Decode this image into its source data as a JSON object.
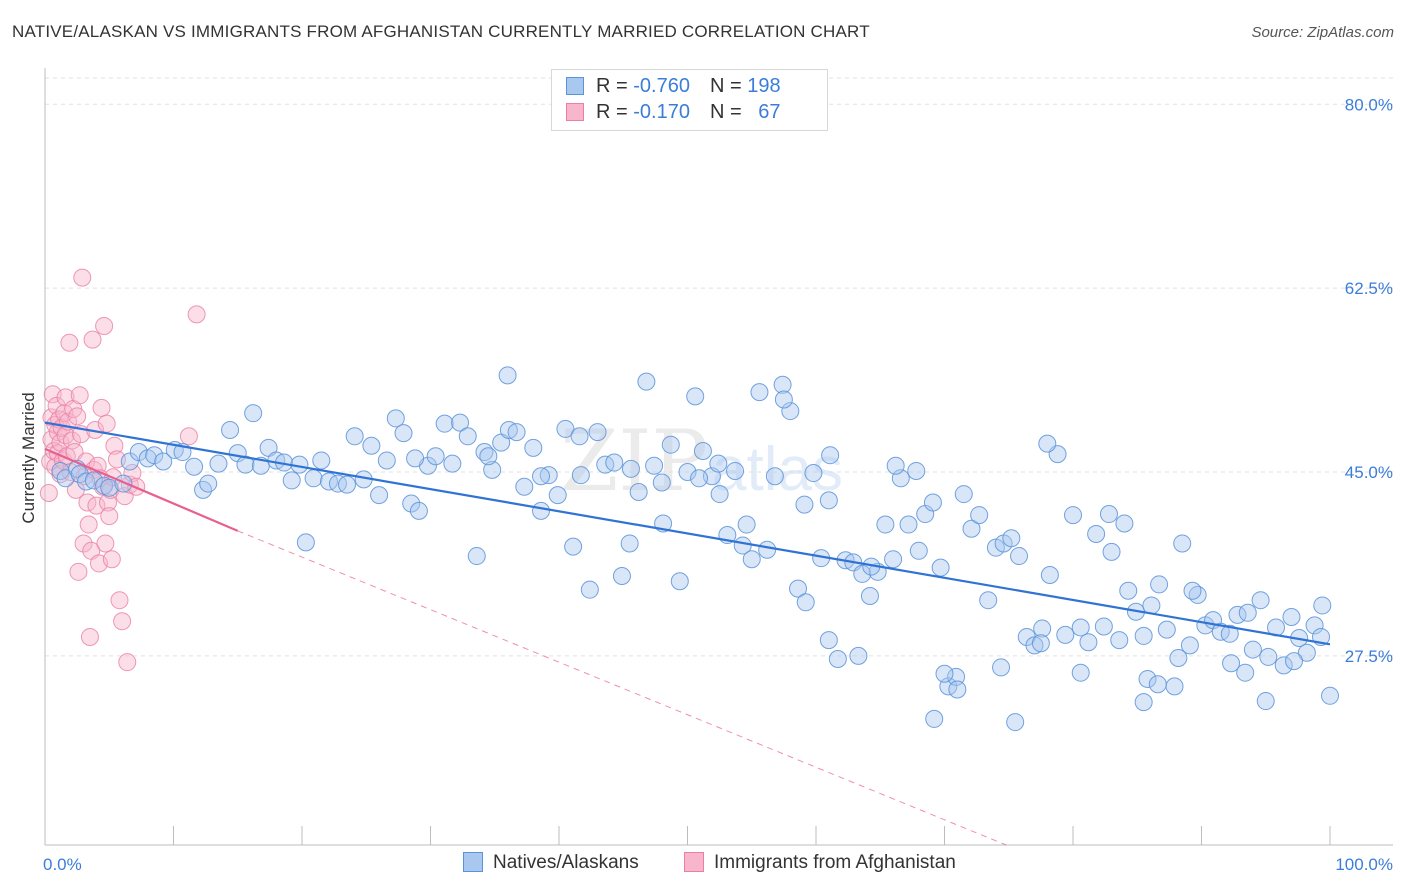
{
  "title": "NATIVE/ALASKAN VS IMMIGRANTS FROM AFGHANISTAN CURRENTLY MARRIED CORRELATION CHART",
  "source": "Source: ZipAtlas.com",
  "watermark": "ZIPatlas",
  "legend": {
    "rows": [
      {
        "r_label": "R = ",
        "r_value": "-0.760",
        "n_label": "N = ",
        "n_value": "198"
      },
      {
        "r_label": "R = ",
        "r_value": "-0.170",
        "n_label": "N = ",
        "n_value": "67"
      }
    ]
  },
  "bottom_legend": [
    "Natives/Alaskans",
    "Immigrants from Afghanistan"
  ],
  "colors": {
    "blue_fill": "#a8c8f0",
    "blue_stroke": "#5b93d9",
    "blue_line": "#2f73d4",
    "pink_fill": "#f7b6cb",
    "pink_stroke": "#ea7fa3",
    "pink_line": "#e8608f",
    "tick_text": "#3b7dd8",
    "grid": "#e2e2e2"
  },
  "chart_data": {
    "type": "scatter",
    "title": "NATIVE/ALASKAN VS IMMIGRANTS FROM AFGHANISTAN CURRENTLY MARRIED CORRELATION CHART",
    "xlabel": "",
    "ylabel": "Currently Married",
    "xlim": [
      0,
      100
    ],
    "ylim": [
      9.5,
      82.5
    ],
    "x_tick_labels": [
      "0.0%",
      "100.0%"
    ],
    "y_ticks": [
      27.5,
      45.0,
      62.5,
      80.0
    ],
    "y_tick_labels": [
      "27.5%",
      "45.0%",
      "62.5%",
      "80.0%"
    ],
    "grid": true,
    "legend_position": "top-center",
    "series": [
      {
        "name": "Natives/Alaskans",
        "r": -0.76,
        "n": 198,
        "trend": {
          "x0": 0,
          "y0": 49.7,
          "x1": 100,
          "y1": 28.6
        },
        "points": [
          [
            1.2,
            45.1
          ],
          [
            1.6,
            44.4
          ],
          [
            2.5,
            45.3
          ],
          [
            2.7,
            44.8
          ],
          [
            3.2,
            44.1
          ],
          [
            3.8,
            44.2
          ],
          [
            4.6,
            43.7
          ],
          [
            5.0,
            43.5
          ],
          [
            6.1,
            43.9
          ],
          [
            6.6,
            46.0
          ],
          [
            7.3,
            46.9
          ],
          [
            8.0,
            46.3
          ],
          [
            8.5,
            46.6
          ],
          [
            9.2,
            46.0
          ],
          [
            10.1,
            47.1
          ],
          [
            10.7,
            46.9
          ],
          [
            11.6,
            45.5
          ],
          [
            12.3,
            43.3
          ],
          [
            12.7,
            43.9
          ],
          [
            13.5,
            45.8
          ],
          [
            14.4,
            49.0
          ],
          [
            15.0,
            46.8
          ],
          [
            15.6,
            45.7
          ],
          [
            16.2,
            50.6
          ],
          [
            16.8,
            45.6
          ],
          [
            17.4,
            47.3
          ],
          [
            18.0,
            46.1
          ],
          [
            18.6,
            45.9
          ],
          [
            19.2,
            44.2
          ],
          [
            19.8,
            45.7
          ],
          [
            20.3,
            38.3
          ],
          [
            20.9,
            44.4
          ],
          [
            21.5,
            46.1
          ],
          [
            22.1,
            44.1
          ],
          [
            22.8,
            43.9
          ],
          [
            23.5,
            43.8
          ],
          [
            24.1,
            48.4
          ],
          [
            24.8,
            44.3
          ],
          [
            25.4,
            47.5
          ],
          [
            26.0,
            42.8
          ],
          [
            26.6,
            46.1
          ],
          [
            27.3,
            50.1
          ],
          [
            27.9,
            48.7
          ],
          [
            28.5,
            42.0
          ],
          [
            29.1,
            41.3
          ],
          [
            29.8,
            45.6
          ],
          [
            30.4,
            46.5
          ],
          [
            31.1,
            49.6
          ],
          [
            31.7,
            45.8
          ],
          [
            32.3,
            49.7
          ],
          [
            32.9,
            48.4
          ],
          [
            33.6,
            37.0
          ],
          [
            34.2,
            46.9
          ],
          [
            34.8,
            45.2
          ],
          [
            35.5,
            47.8
          ],
          [
            36.1,
            49.0
          ],
          [
            36.7,
            48.8
          ],
          [
            37.3,
            43.6
          ],
          [
            38.0,
            47.3
          ],
          [
            38.6,
            41.3
          ],
          [
            39.2,
            44.7
          ],
          [
            39.9,
            42.8
          ],
          [
            40.5,
            49.1
          ],
          [
            41.1,
            37.9
          ],
          [
            41.7,
            44.7
          ],
          [
            42.4,
            33.8
          ],
          [
            43.0,
            48.8
          ],
          [
            43.6,
            45.7
          ],
          [
            44.3,
            45.9
          ],
          [
            44.9,
            35.1
          ],
          [
            45.6,
            45.3
          ],
          [
            46.2,
            43.1
          ],
          [
            46.8,
            53.6
          ],
          [
            47.4,
            45.6
          ],
          [
            48.1,
            40.1
          ],
          [
            48.7,
            47.6
          ],
          [
            49.4,
            34.6
          ],
          [
            50.0,
            45.0
          ],
          [
            50.6,
            52.2
          ],
          [
            51.2,
            47.0
          ],
          [
            51.9,
            44.6
          ],
          [
            52.5,
            42.9
          ],
          [
            53.1,
            39.0
          ],
          [
            53.7,
            45.1
          ],
          [
            54.3,
            38.0
          ],
          [
            55.0,
            36.7
          ],
          [
            55.6,
            52.6
          ],
          [
            56.2,
            37.6
          ],
          [
            56.8,
            44.6
          ],
          [
            57.4,
            53.3
          ],
          [
            58.0,
            50.8
          ],
          [
            58.6,
            33.9
          ],
          [
            59.2,
            32.6
          ],
          [
            59.8,
            44.9
          ],
          [
            60.4,
            36.8
          ],
          [
            61.1,
            46.6
          ],
          [
            61.7,
            27.2
          ],
          [
            62.3,
            36.6
          ],
          [
            62.9,
            36.4
          ],
          [
            63.6,
            35.3
          ],
          [
            64.2,
            33.2
          ],
          [
            64.8,
            35.5
          ],
          [
            65.4,
            40.0
          ],
          [
            66.0,
            36.7
          ],
          [
            66.6,
            44.4
          ],
          [
            67.2,
            40.0
          ],
          [
            67.8,
            45.1
          ],
          [
            68.5,
            41.0
          ],
          [
            69.1,
            42.1
          ],
          [
            69.7,
            35.9
          ],
          [
            70.3,
            24.6
          ],
          [
            70.9,
            25.5
          ],
          [
            71.5,
            42.9
          ],
          [
            72.1,
            39.6
          ],
          [
            72.7,
            40.9
          ],
          [
            73.4,
            32.8
          ],
          [
            74.0,
            37.8
          ],
          [
            74.6,
            38.2
          ],
          [
            75.2,
            38.7
          ],
          [
            75.8,
            37.0
          ],
          [
            76.4,
            29.3
          ],
          [
            77.0,
            28.5
          ],
          [
            77.6,
            30.1
          ],
          [
            78.2,
            35.2
          ],
          [
            78.8,
            46.7
          ],
          [
            79.4,
            29.5
          ],
          [
            80.0,
            40.9
          ],
          [
            80.6,
            30.2
          ],
          [
            81.2,
            28.8
          ],
          [
            81.8,
            39.1
          ],
          [
            82.4,
            30.3
          ],
          [
            83.0,
            37.4
          ],
          [
            83.6,
            29.0
          ],
          [
            84.3,
            33.7
          ],
          [
            84.9,
            31.7
          ],
          [
            85.5,
            29.4
          ],
          [
            86.1,
            32.3
          ],
          [
            86.7,
            34.3
          ],
          [
            87.3,
            30.0
          ],
          [
            87.9,
            24.6
          ],
          [
            88.5,
            38.2
          ],
          [
            89.1,
            28.5
          ],
          [
            89.7,
            33.3
          ],
          [
            90.3,
            30.4
          ],
          [
            90.9,
            30.9
          ],
          [
            91.5,
            29.8
          ],
          [
            92.2,
            29.6
          ],
          [
            92.8,
            31.4
          ],
          [
            93.4,
            25.9
          ],
          [
            94.0,
            28.1
          ],
          [
            94.6,
            32.8
          ],
          [
            95.2,
            27.4
          ],
          [
            95.8,
            30.2
          ],
          [
            96.4,
            26.6
          ],
          [
            97.0,
            31.2
          ],
          [
            97.6,
            29.2
          ],
          [
            98.2,
            27.8
          ],
          [
            98.8,
            30.4
          ],
          [
            99.4,
            32.3
          ],
          [
            100.0,
            23.7
          ],
          [
            36.0,
            54.2
          ],
          [
            52.4,
            45.8
          ],
          [
            71.0,
            24.3
          ],
          [
            92.3,
            26.8
          ],
          [
            68.0,
            37.5
          ],
          [
            80.6,
            25.9
          ],
          [
            85.8,
            25.3
          ],
          [
            74.4,
            26.4
          ],
          [
            86.6,
            24.8
          ],
          [
            88.2,
            27.3
          ],
          [
            61.0,
            42.3
          ],
          [
            64.3,
            36.0
          ],
          [
            69.2,
            21.5
          ],
          [
            57.5,
            51.9
          ],
          [
            50.9,
            44.4
          ],
          [
            41.6,
            48.4
          ],
          [
            28.8,
            46.3
          ],
          [
            38.6,
            44.6
          ],
          [
            34.5,
            46.5
          ],
          [
            66.2,
            45.6
          ],
          [
            59.1,
            41.9
          ],
          [
            82.8,
            41.0
          ],
          [
            89.3,
            33.7
          ],
          [
            93.6,
            31.6
          ],
          [
            95.0,
            23.2
          ],
          [
            97.2,
            27.0
          ],
          [
            99.3,
            29.3
          ],
          [
            54.6,
            40.0
          ],
          [
            48.0,
            44.0
          ],
          [
            45.5,
            38.2
          ],
          [
            78.0,
            47.7
          ],
          [
            61.0,
            29.0
          ],
          [
            75.5,
            21.2
          ],
          [
            85.5,
            23.1
          ],
          [
            63.3,
            27.5
          ],
          [
            70.0,
            25.8
          ],
          [
            77.5,
            28.7
          ],
          [
            84.0,
            40.1
          ]
        ]
      },
      {
        "name": "Immigrants from Afghanistan",
        "r": -0.17,
        "n": 67,
        "trend": {
          "x0": 0,
          "y0": 47.2,
          "x1": 15,
          "y1": 39.4,
          "dashed_to_x": 100,
          "dashed_to_y": -3.1
        },
        "points": [
          [
            0.3,
            43.0
          ],
          [
            0.4,
            46.0
          ],
          [
            0.5,
            50.2
          ],
          [
            0.5,
            48.1
          ],
          [
            0.6,
            52.4
          ],
          [
            0.7,
            47.0
          ],
          [
            0.8,
            45.5
          ],
          [
            0.8,
            49.5
          ],
          [
            0.9,
            51.3
          ],
          [
            1.0,
            48.8
          ],
          [
            1.0,
            46.8
          ],
          [
            1.1,
            50.0
          ],
          [
            1.2,
            44.8
          ],
          [
            1.2,
            47.8
          ],
          [
            1.3,
            49.2
          ],
          [
            1.4,
            46.1
          ],
          [
            1.5,
            50.6
          ],
          [
            1.6,
            48.5
          ],
          [
            1.6,
            52.1
          ],
          [
            1.7,
            46.5
          ],
          [
            1.8,
            49.8
          ],
          [
            1.9,
            57.3
          ],
          [
            2.0,
            45.0
          ],
          [
            2.1,
            48.0
          ],
          [
            2.2,
            51.0
          ],
          [
            2.3,
            46.9
          ],
          [
            2.4,
            43.3
          ],
          [
            2.5,
            50.3
          ],
          [
            2.6,
            35.5
          ],
          [
            2.7,
            52.3
          ],
          [
            2.8,
            48.6
          ],
          [
            2.9,
            63.5
          ],
          [
            3.0,
            38.2
          ],
          [
            3.1,
            44.6
          ],
          [
            3.2,
            46.0
          ],
          [
            3.3,
            42.1
          ],
          [
            3.4,
            40.0
          ],
          [
            3.5,
            29.3
          ],
          [
            3.6,
            37.5
          ],
          [
            3.7,
            57.6
          ],
          [
            3.8,
            45.2
          ],
          [
            3.9,
            49.0
          ],
          [
            4.0,
            41.8
          ],
          [
            4.1,
            45.6
          ],
          [
            4.2,
            36.3
          ],
          [
            4.3,
            44.4
          ],
          [
            4.4,
            51.1
          ],
          [
            4.5,
            43.6
          ],
          [
            4.6,
            58.9
          ],
          [
            4.7,
            38.2
          ],
          [
            4.8,
            49.6
          ],
          [
            4.9,
            42.1
          ],
          [
            5.0,
            40.8
          ],
          [
            5.1,
            43.3
          ],
          [
            5.2,
            36.7
          ],
          [
            5.3,
            44.5
          ],
          [
            5.4,
            47.5
          ],
          [
            5.6,
            46.2
          ],
          [
            5.8,
            32.8
          ],
          [
            6.0,
            30.8
          ],
          [
            6.2,
            42.7
          ],
          [
            6.4,
            26.9
          ],
          [
            6.6,
            43.8
          ],
          [
            6.8,
            44.9
          ],
          [
            7.1,
            43.6
          ],
          [
            11.2,
            48.4
          ],
          [
            11.8,
            60.0
          ]
        ]
      }
    ]
  }
}
